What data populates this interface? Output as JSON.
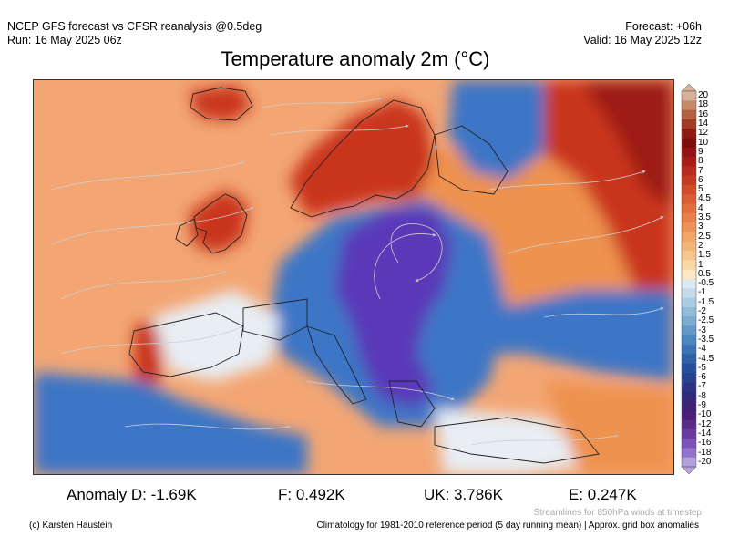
{
  "header": {
    "left_line1": "NCEP GFS forecast vs CFSR reanalysis @0.5deg",
    "left_line2": "Run: 16 May 2025 06z",
    "right_line1": "Forecast: +06h",
    "right_line2": "Valid: 16 May 2025 12z"
  },
  "title": "Temperature anomaly 2m (°C)",
  "colorbar": {
    "labels": [
      "20",
      "18",
      "16",
      "14",
      "12",
      "10",
      "9",
      "8",
      "7",
      "6",
      "5",
      "4.5",
      "4",
      "3.5",
      "3",
      "2.5",
      "2",
      "1.5",
      "1",
      "0.5",
      "-0.5",
      "-1",
      "-1.5",
      "-2",
      "-2.5",
      "-3",
      "-3.5",
      "-4",
      "-4.5",
      "-5",
      "-6",
      "-7",
      "-8",
      "-9",
      "-10",
      "-12",
      "-14",
      "-16",
      "-18",
      "-20"
    ],
    "colors": [
      "#d9b09a",
      "#c68a6c",
      "#b76040",
      "#a33a22",
      "#8e1a12",
      "#7e0e0c",
      "#951413",
      "#a91c16",
      "#b92a1c",
      "#c63a22",
      "#d24c2a",
      "#dc5c33",
      "#e46e3e",
      "#ea8049",
      "#ef9257",
      "#f3a467",
      "#f6b578",
      "#f9c78d",
      "#fbd7a4",
      "#fde6c0",
      "#dce9f1",
      "#c4dbea",
      "#abcce3",
      "#93bcdb",
      "#7aabd2",
      "#6299c9",
      "#4d87bf",
      "#3c73b4",
      "#2f60a8",
      "#254f9c",
      "#26428f",
      "#2b3484",
      "#33297c",
      "#3e2277",
      "#4b1f75",
      "#5a2a88",
      "#6a3aa0",
      "#7d52b8",
      "#9373cc",
      "#b3a1dd"
    ]
  },
  "map": {
    "colors": {
      "ocean_warm": "#f3a674",
      "land_warm": "#ee9250",
      "hot": "#c9341f",
      "hot_dark": "#9e1b14",
      "cold_blue": "#3e76c6",
      "cold_purple": "#5a39b8",
      "neutral": "#e8eef4",
      "coastline": "#222222",
      "streamline": "#c9c9c9"
    }
  },
  "stats": {
    "d": "Anomaly D: -1.69K",
    "f": "F: 0.492K",
    "uk": "UK: 3.786K",
    "e": "E: 0.247K"
  },
  "footer": {
    "streamlines_note": "Streamlines for 850hPa winds at timestep",
    "credit": "(c) Karsten Haustein",
    "climatology_note": "Climatology for 1981-2010 reference period (5 day running mean) | Approx. grid box anomalies"
  }
}
